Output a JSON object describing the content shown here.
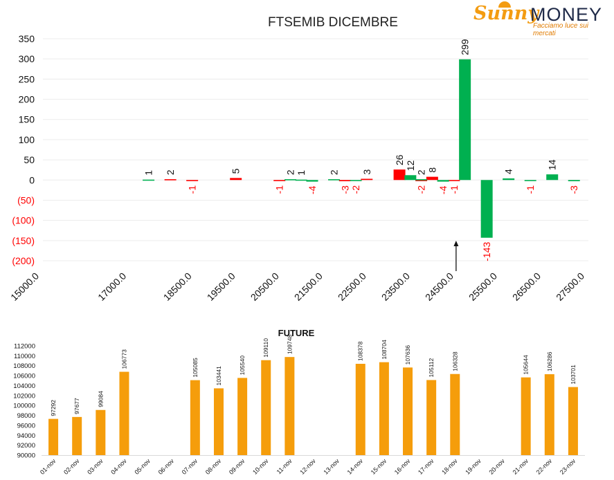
{
  "logo": {
    "brand_a": "Sunny",
    "brand_b": "MONEY",
    "tagline": "Facciamo luce sui mercati"
  },
  "colors": {
    "put": "#ff0000",
    "call": "#00b050",
    "future": "#f59d0b",
    "negative_label": "#ff0000"
  },
  "chart_data": [
    {
      "type": "bar",
      "title": "FTSEMIB DICEMBRE",
      "y_ticks": [
        "350",
        "300",
        "250",
        "200",
        "150",
        "100",
        "50",
        "0",
        "(50)",
        "(100)",
        "(150)",
        "(200)"
      ],
      "ylim": [
        -200,
        350
      ],
      "x_tick_labels": [
        "15000.0",
        "17000.0",
        "18500.0",
        "19500.0",
        "20500.0",
        "21500.0",
        "22500.0",
        "23500.0",
        "24500.0",
        "25500.0",
        "26500.0",
        "27500.0"
      ],
      "grid": true,
      "series": [
        {
          "name": "",
          "color": "#ff0000",
          "values": [
            {
              "strike": 18000,
              "value": 2
            },
            {
              "strike": 18500,
              "value": -1
            },
            {
              "strike": 19500,
              "value": 5
            },
            {
              "strike": 20500,
              "value": -1
            },
            {
              "strike": 22000,
              "value": -3
            },
            {
              "strike": 22500,
              "value": 3
            },
            {
              "strike": 23250,
              "value": 26
            },
            {
              "strike": 23750,
              "value": -2
            },
            {
              "strike": 24000,
              "value": 8
            },
            {
              "strike": 24500,
              "value": -1
            }
          ]
        },
        {
          "name": "",
          "color": "#00b050",
          "values": [
            {
              "strike": 17500,
              "value": 1
            },
            {
              "strike": 20750,
              "value": 2
            },
            {
              "strike": 21000,
              "value": 1
            },
            {
              "strike": 21250,
              "value": -4
            },
            {
              "strike": 21750,
              "value": 2
            },
            {
              "strike": 22250,
              "value": -2
            },
            {
              "strike": 23500,
              "value": 12
            },
            {
              "strike": 23750,
              "value": 2
            },
            {
              "strike": 24250,
              "value": -4
            },
            {
              "strike": 24750,
              "value": 299
            },
            {
              "strike": 25250,
              "value": -143
            },
            {
              "strike": 25750,
              "value": 4
            },
            {
              "strike": 26250,
              "value": -1
            },
            {
              "strike": 26750,
              "value": 14
            },
            {
              "strike": 27250,
              "value": -3
            }
          ]
        }
      ],
      "arrow_marker_strike": 24500
    },
    {
      "type": "bar",
      "title": "FUTURE",
      "y_ticks": [
        "112000",
        "110000",
        "108000",
        "106000",
        "104000",
        "102000",
        "100000",
        "98000",
        "96000",
        "94000",
        "92000",
        "90000"
      ],
      "ylim": [
        90000,
        112000
      ],
      "categories": [
        "01-nov",
        "02-nov",
        "03-nov",
        "04-nov",
        "05-nov",
        "06-nov",
        "07-nov",
        "08-nov",
        "09-nov",
        "10-nov",
        "11-nov",
        "12-nov",
        "13-nov",
        "14-nov",
        "15-nov",
        "16-nov",
        "17-nov",
        "18-nov",
        "19-nov",
        "20-nov",
        "21-nov",
        "22-nov",
        "23-nov"
      ],
      "values": [
        97292,
        97677,
        99084,
        106773,
        null,
        null,
        105085,
        103441,
        105540,
        109110,
        109748,
        null,
        null,
        108378,
        108704,
        107636,
        105112,
        106328,
        null,
        null,
        105644,
        106286,
        103701
      ],
      "color": "#f59d0b"
    }
  ]
}
